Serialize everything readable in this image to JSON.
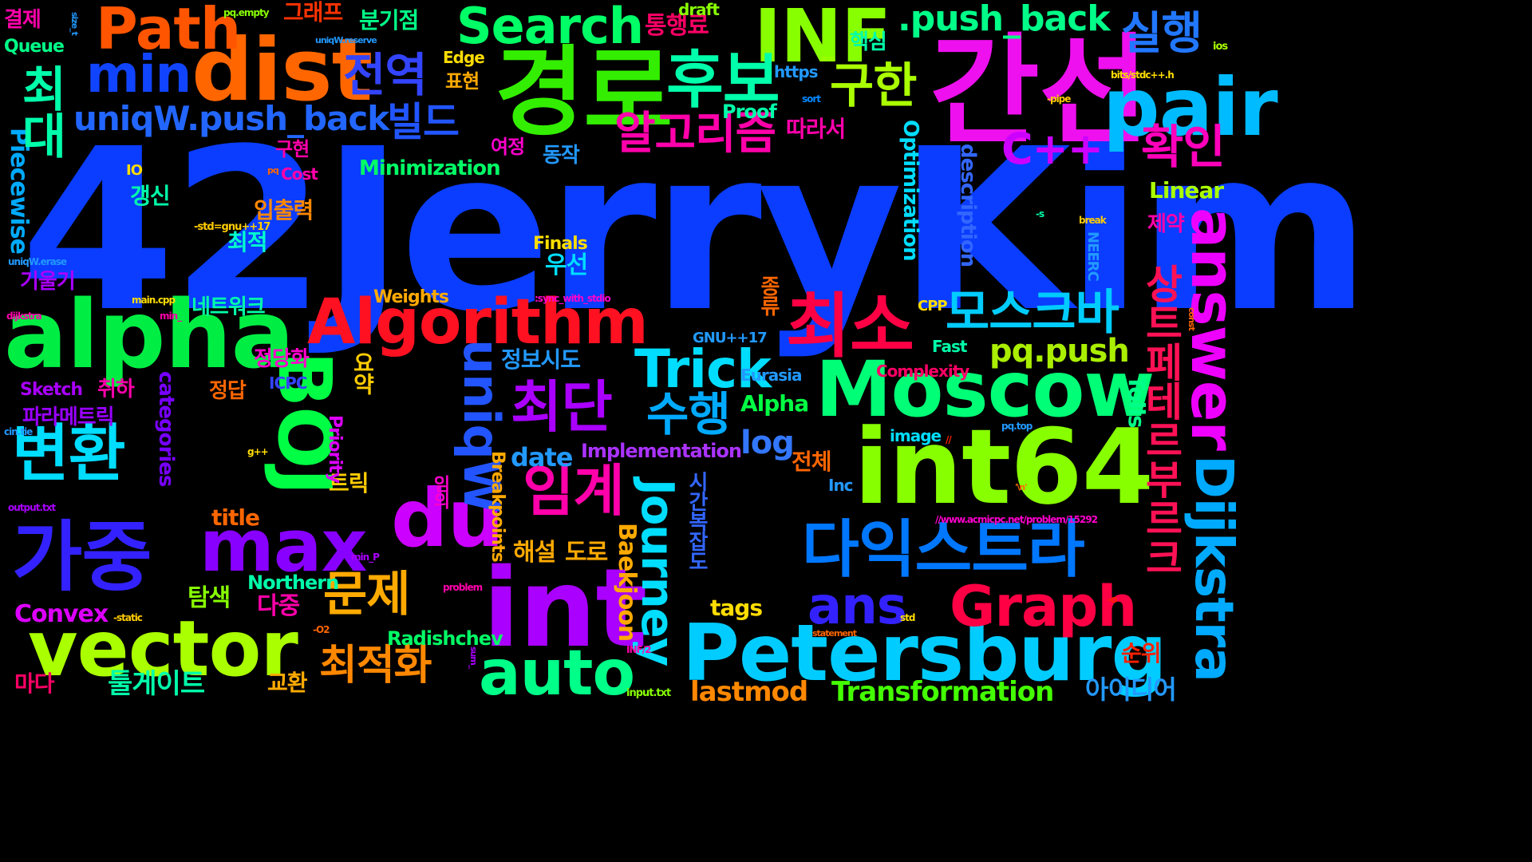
{
  "words": [
    {
      "text": "42JerryKim",
      "color": "#0a3dff"
    },
    {
      "text": "간선",
      "color": "#ee10ee"
    },
    {
      "text": "경로",
      "color": "#33ee00"
    },
    {
      "text": "dist",
      "color": "#ff6600"
    },
    {
      "text": "INF",
      "color": "#88ff00"
    },
    {
      "text": "Path",
      "color": "#ff5500"
    },
    {
      "text": "Search",
      "color": "#00ff66"
    },
    {
      "text": ".push_back",
      "color": "#00ff88"
    },
    {
      "text": "후보",
      "color": "#00ffaa"
    },
    {
      "text": "전역",
      "color": "#3344ff"
    },
    {
      "text": "구한",
      "color": "#aaff00"
    },
    {
      "text": "실행",
      "color": "#2277ff"
    },
    {
      "text": "pair",
      "color": "#00bbff"
    },
    {
      "text": "min",
      "color": "#1144ff"
    },
    {
      "text": "uniqW.push_back",
      "color": "#2266ff"
    },
    {
      "text": "빌드",
      "color": "#2255ff"
    },
    {
      "text": "알고리즘",
      "color": "#ff00aa"
    },
    {
      "text": "C++",
      "color": "#cc00ff"
    },
    {
      "text": "확인",
      "color": "#ff00bb"
    },
    {
      "text": "alpha",
      "color": "#00ee44"
    },
    {
      "text": "Algorithm",
      "color": "#ff1122"
    },
    {
      "text": "최소",
      "color": "#ff0044"
    },
    {
      "text": "Moscow",
      "color": "#00ff77"
    },
    {
      "text": "answer",
      "color": "#ee00ff"
    },
    {
      "text": "모스크바",
      "color": "#00ccff"
    },
    {
      "text": "Trick",
      "color": "#00ddff"
    },
    {
      "text": "pq.push",
      "color": "#aaee00"
    },
    {
      "text": "int64",
      "color": "#88ff00"
    },
    {
      "text": "변환",
      "color": "#00ddff"
    },
    {
      "text": "가중",
      "color": "#3322ff"
    },
    {
      "text": "max",
      "color": "#8800ff"
    },
    {
      "text": "BOJ",
      "color": "#00ff44"
    },
    {
      "text": "du",
      "color": "#cc00ff"
    },
    {
      "text": "uniqW",
      "color": "#2255ff"
    },
    {
      "text": "최단",
      "color": "#aa00ff"
    },
    {
      "text": "수행",
      "color": "#00aaff"
    },
    {
      "text": "임계",
      "color": "#ff00aa"
    },
    {
      "text": "다익스트라",
      "color": "#0077ff"
    },
    {
      "text": "Petersburg",
      "color": "#00ccff"
    },
    {
      "text": "vector",
      "color": "#aaff00"
    },
    {
      "text": "int",
      "color": "#aa00ff"
    },
    {
      "text": "auto",
      "color": "#00ff88"
    },
    {
      "text": "ans",
      "color": "#3322ff"
    },
    {
      "text": "Graph",
      "color": "#ff0044"
    },
    {
      "text": "Dijkstra",
      "color": "#00aaff"
    },
    {
      "text": "상트페테르부르크",
      "color": "#ff1155"
    },
    {
      "text": "Journey",
      "color": "#00ddff"
    },
    {
      "text": "문제",
      "color": "#ffaa00"
    },
    {
      "text": "최적화",
      "color": "#ff8800"
    },
    {
      "text": "log",
      "color": "#3377ff"
    },
    {
      "text": "해설",
      "color": "#ffaa00"
    },
    {
      "text": "도로",
      "color": "#ffaa00"
    },
    {
      "text": "Transformation",
      "color": "#44ff00"
    },
    {
      "text": "lastmod",
      "color": "#ff8800"
    },
    {
      "text": "아이디어",
      "color": "#2299ff"
    },
    {
      "text": "순위",
      "color": "#ff2200"
    },
    {
      "text": "툴게이트",
      "color": "#00ffaa"
    },
    {
      "text": "교환",
      "color": "#ffaa00"
    },
    {
      "text": "다중",
      "color": "#ff00aa"
    },
    {
      "text": "탐색",
      "color": "#88ff00"
    },
    {
      "text": "Convex",
      "color": "#dd00ff"
    },
    {
      "text": "마다",
      "color": "#ff0066"
    },
    {
      "text": "Northern",
      "color": "#00ffaa"
    },
    {
      "text": "Radishchev",
      "color": "#00ff66"
    },
    {
      "text": "tags",
      "color": "#ffdd00"
    },
    {
      "text": "Implementation",
      "color": "#aa33ff"
    },
    {
      "text": "date",
      "color": "#2299ff"
    },
    {
      "text": "Breakpoints",
      "color": "#ffaa00"
    },
    {
      "text": "Baekjoon",
      "color": "#ffaa00"
    },
    {
      "text": "title",
      "color": "#ff6600"
    },
    {
      "text": "트릭",
      "color": "#ffcc00"
    },
    {
      "text": "요약",
      "color": "#ffcc00"
    },
    {
      "text": "Priority",
      "color": "#dd00ff"
    },
    {
      "text": "categories",
      "color": "#7700ff"
    },
    {
      "text": "파라메트릭",
      "color": "#9900ff"
    },
    {
      "text": "취하",
      "color": "#ff00aa"
    },
    {
      "text": "Sketch",
      "color": "#aa00ff"
    },
    {
      "text": "정당화",
      "color": "#ff00cc"
    },
    {
      "text": "정답",
      "color": "#ff6600"
    },
    {
      "text": "ICPC",
      "color": "#3344ff"
    },
    {
      "text": "네트워크",
      "color": "#00ffaa"
    },
    {
      "text": "기울기",
      "color": "#aa00ff"
    },
    {
      "text": "최적",
      "color": "#00ffcc"
    },
    {
      "text": "입출력",
      "color": "#ff8800"
    },
    {
      "text": "-std=gnu++17",
      "color": "#ffcc00"
    },
    {
      "text": "갱신",
      "color": "#00ffaa"
    },
    {
      "text": "IO",
      "color": "#ffdd00"
    },
    {
      "text": "Cost",
      "color": "#ff00aa"
    },
    {
      "text": "구현",
      "color": "#ff00aa"
    },
    {
      "text": "Piecewise",
      "color": "#00aaff"
    },
    {
      "text": "Minimization",
      "color": "#00ff66"
    },
    {
      "text": "동작",
      "color": "#2299ff"
    },
    {
      "text": "여정",
      "color": "#ff00cc"
    },
    {
      "text": "표현",
      "color": "#ffaa00"
    },
    {
      "text": "Edge",
      "color": "#ffdd00"
    },
    {
      "text": "분기점",
      "color": "#00ff88"
    },
    {
      "text": "통행료",
      "color": "#ff0066"
    },
    {
      "text": "그래프",
      "color": "#ff3300"
    },
    {
      "text": "결제",
      "color": "#ff00aa"
    },
    {
      "text": "Queue",
      "color": "#00ff88"
    },
    {
      "text": "최대",
      "color": "#00ffaa"
    },
    {
      "text": "핵심",
      "color": "#00ffaa"
    },
    {
      "text": "https",
      "color": "#2299ff"
    },
    {
      "text": "따라서",
      "color": "#ff00aa"
    },
    {
      "text": "Proof",
      "color": "#00ffaa"
    },
    {
      "text": "Linear",
      "color": "#aaff00"
    },
    {
      "text": "제약",
      "color": "#ff00aa"
    },
    {
      "text": "Optimization",
      "color": "#00ddff"
    },
    {
      "text": "description",
      "color": "#3366ff"
    },
    {
      "text": "Finals",
      "color": "#ffdd00"
    },
    {
      "text": "우선",
      "color": "#00ddff"
    },
    {
      "text": "Weights",
      "color": "#ffaa00"
    },
    {
      "text": "종류",
      "color": "#ff6600"
    },
    {
      "text": "CPP",
      "color": "#ffdd00"
    },
    {
      "text": "정보시도",
      "color": "#2299ff"
    },
    {
      "text": "GNU++17",
      "color": "#2299ff"
    },
    {
      "text": "Fast",
      "color": "#00ffaa"
    },
    {
      "text": "Eurasia",
      "color": "#2299ff"
    },
    {
      "text": "Complexity",
      "color": "#ff0066"
    },
    {
      "text": "Alpha",
      "color": "#00ff44"
    },
    {
      "text": "전체",
      "color": "#ff6600"
    },
    {
      "text": "Tolls",
      "color": "#00ff88"
    },
    {
      "text": "NEERC",
      "color": "#2299ff"
    },
    {
      "text": "image",
      "color": "#00ddff"
    },
    {
      "text": "Inc",
      "color": "#2299ff"
    },
    {
      "text": "시간복잡도",
      "color": "#3366ff"
    },
    {
      "text": "임의",
      "color": "#ff00cc"
    },
    {
      "text": "draft",
      "color": "#88ff00"
    },
    {
      "text": "==",
      "color": "#aaff00"
    },
    {
      "text": "sort",
      "color": "#0088ff"
    },
    {
      "text": "ios",
      "color": "#aaff00"
    },
    {
      "text": "bits/stdc++.h",
      "color": "#ffdd00"
    },
    {
      "text": "-pipe",
      "color": "#ffcc00"
    },
    {
      "text": "-s",
      "color": "#00ffaa"
    },
    {
      "text": "break",
      "color": "#ffcc00"
    },
    {
      "text": "const",
      "color": "#ff6600"
    },
    {
      "text": "pq.top",
      "color": "#2299ff"
    },
    {
      "text": "//",
      "color": "#ff2200"
    },
    {
      "text": "//www.acmicpc.net/problem/15292",
      "color": "#ff00cc"
    },
    {
      "text": "'\\n'",
      "color": "#ff6600"
    },
    {
      "text": "-o",
      "color": "#ff2200"
    },
    {
      "text": "std",
      "color": "#ffdd00"
    },
    {
      "text": "statement",
      "color": "#ff6600"
    },
    {
      "text": "input.txt",
      "color": "#88ff00"
    },
    {
      "text": "INF/2",
      "color": "#ff00aa"
    },
    {
      "text": "sum_",
      "color": "#aa00ff"
    },
    {
      "text": "problem",
      "color": "#ff00aa"
    },
    {
      "text": "min_P",
      "color": "#aa00ff"
    },
    {
      "text": "-O2",
      "color": "#ff6600"
    },
    {
      "text": "-static",
      "color": "#ffcc00"
    },
    {
      "text": "output.txt",
      "color": "#aa00ff"
    },
    {
      "text": "g++",
      "color": "#ffdd00"
    },
    {
      "text": "cin.tie",
      "color": "#2299ff"
    },
    {
      "text": "dijkstra",
      "color": "#ff00aa"
    },
    {
      "text": "main.cpp",
      "color": "#ffdd00"
    },
    {
      "text": "min_",
      "color": "#ff00aa"
    },
    {
      "text": ":sync_with_stdio",
      "color": "#ff00cc"
    },
    {
      "text": "uniqW.erase",
      "color": "#2299ff"
    },
    {
      "text": "pq",
      "color": "#ff6600"
    },
    {
      "text": "uniqW.reserve",
      "color": "#2299ff"
    },
    {
      "text": "size_t",
      "color": "#2299ff"
    },
    {
      "text": "pq.empty",
      "color": "#88ff00"
    }
  ]
}
